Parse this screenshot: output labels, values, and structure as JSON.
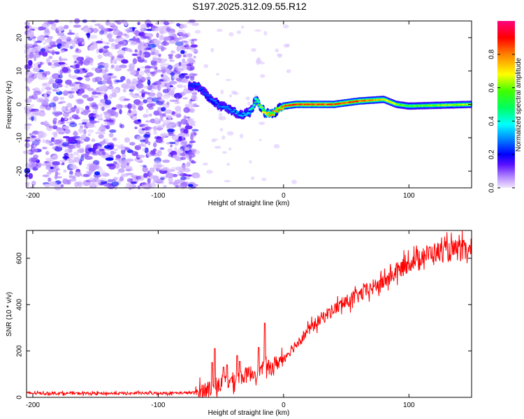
{
  "title": "S197.2025.312.09.55.R12",
  "chart_data": [
    {
      "type": "heatmap",
      "xlabel": "Height of straight line (km)",
      "ylabel": "Frequency (Hz)",
      "xlim": [
        -205,
        150
      ],
      "ylim": [
        -25,
        25
      ],
      "xticks": [
        -200,
        -100,
        0,
        100
      ],
      "yticks": [
        20,
        10,
        0,
        -10,
        -20
      ],
      "colorbar": {
        "label": "Normalized spectral amplitude",
        "range": [
          0,
          1
        ],
        "ticks": [
          0.0,
          0.2,
          0.4,
          0.6,
          0.8
        ]
      },
      "ridge": [
        {
          "x": -75,
          "y": 5.5
        },
        {
          "x": -68,
          "y": 5.5
        },
        {
          "x": -62,
          "y": 3
        },
        {
          "x": -55,
          "y": 0.5
        },
        {
          "x": -45,
          "y": -1
        },
        {
          "x": -38,
          "y": -2.5
        },
        {
          "x": -33,
          "y": -3.5
        },
        {
          "x": -26,
          "y": -2
        },
        {
          "x": -22,
          "y": 1.5
        },
        {
          "x": -18,
          "y": -1
        },
        {
          "x": -14,
          "y": -3
        },
        {
          "x": -8,
          "y": -2.5
        },
        {
          "x": 0,
          "y": -0.5
        },
        {
          "x": 10,
          "y": 0
        },
        {
          "x": 40,
          "y": 0
        },
        {
          "x": 60,
          "y": 1
        },
        {
          "x": 80,
          "y": 1.5
        },
        {
          "x": 90,
          "y": 0
        },
        {
          "x": 100,
          "y": -0.5
        },
        {
          "x": 150,
          "y": 0
        }
      ],
      "ridge_amplitude": [
        {
          "x": -75,
          "a": 0.25
        },
        {
          "x": -30,
          "a": 0.35
        },
        {
          "x": -12,
          "a": 0.8
        },
        {
          "x": 10,
          "a": 0.95
        },
        {
          "x": 60,
          "a": 0.9
        },
        {
          "x": 100,
          "a": 0.6
        },
        {
          "x": 150,
          "a": 0.7
        }
      ],
      "noise_region_x": [
        -205,
        -70
      ]
    },
    {
      "type": "line",
      "xlabel": "Height of straight line (km)",
      "ylabel": "SNR (10 * v/v)",
      "xlim": [
        -205,
        150
      ],
      "ylim": [
        0,
        720
      ],
      "xticks": [
        -200,
        -100,
        0,
        100
      ],
      "yticks": [
        0,
        200,
        400,
        600
      ],
      "color": "#ff0000",
      "series": [
        {
          "name": "SNR",
          "x": [
            -205,
            -150,
            -100,
            -70,
            -60,
            -50,
            -40,
            -30,
            -20,
            -10,
            0,
            10,
            20,
            30,
            40,
            50,
            60,
            70,
            80,
            90,
            100,
            110,
            120,
            130,
            140,
            150
          ],
          "y": [
            18,
            17,
            18,
            20,
            40,
            55,
            75,
            95,
            115,
            130,
            170,
            230,
            290,
            340,
            380,
            410,
            440,
            470,
            500,
            540,
            580,
            610,
            625,
            630,
            635,
            625
          ]
        }
      ],
      "spikes": [
        {
          "x": -57,
          "y": 150
        },
        {
          "x": -55,
          "y": 210
        },
        {
          "x": -48,
          "y": 130
        },
        {
          "x": -45,
          "y": 140
        },
        {
          "x": -37,
          "y": 180
        },
        {
          "x": -35,
          "y": 155
        },
        {
          "x": -20,
          "y": 215
        },
        {
          "x": -15,
          "y": 320
        },
        {
          "x": -12,
          "y": 160
        }
      ]
    }
  ]
}
